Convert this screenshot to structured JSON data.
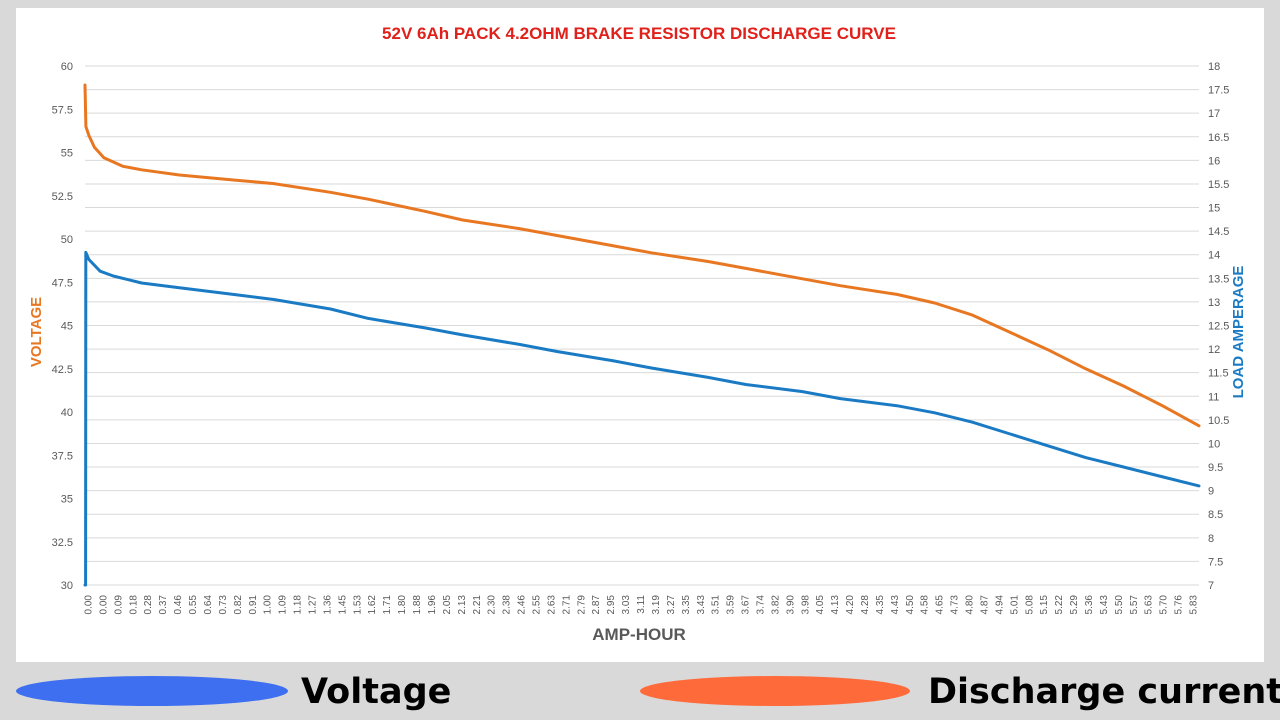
{
  "chart_data": {
    "type": "line",
    "title": "52V 6Ah PACK 4.2OHM BRAKE RESISTOR DISCHARGE CURVE",
    "xlabel": "AMP-HOUR",
    "ylabel_left": "VOLTAGE",
    "ylabel_right": "LOAD AMPERAGE",
    "xlim": [
      0,
      5.9
    ],
    "ylim_left": [
      30,
      60
    ],
    "ylim_right": [
      7,
      18
    ],
    "y_ticks_left": [
      "30",
      "32.5",
      "35",
      "37.5",
      "40",
      "42.5",
      "45",
      "47.5",
      "50",
      "52.5",
      "55",
      "57.5",
      "60"
    ],
    "y_ticks_right": [
      "7",
      "7.5",
      "8",
      "8.5",
      "9",
      "9.5",
      "10",
      "10.5",
      "11",
      "11.5",
      "12",
      "12.5",
      "13",
      "13.5",
      "14",
      "14.5",
      "15",
      "15.5",
      "16",
      "16.5",
      "17",
      "17.5",
      "18"
    ],
    "x_ticks": [
      "0.00",
      "0.00",
      "0.09",
      "0.18",
      "0.28",
      "0.37",
      "0.46",
      "0.55",
      "0.64",
      "0.73",
      "0.82",
      "0.91",
      "1.00",
      "1.09",
      "1.18",
      "1.27",
      "1.36",
      "1.45",
      "1.53",
      "1.62",
      "1.71",
      "1.80",
      "1.88",
      "1.96",
      "2.05",
      "2.13",
      "2.21",
      "2.30",
      "2.38",
      "2.46",
      "2.55",
      "2.63",
      "2.71",
      "2.79",
      "2.87",
      "2.95",
      "3.03",
      "3.11",
      "3.19",
      "3.27",
      "3.35",
      "3.43",
      "3.51",
      "3.59",
      "3.67",
      "3.74",
      "3.82",
      "3.90",
      "3.98",
      "4.05",
      "4.13",
      "4.20",
      "4.28",
      "4.35",
      "4.43",
      "4.50",
      "4.58",
      "4.65",
      "4.73",
      "4.80",
      "4.87",
      "4.94",
      "5.01",
      "5.08",
      "5.15",
      "5.22",
      "5.29",
      "5.36",
      "5.43",
      "5.50",
      "5.57",
      "5.63",
      "5.70",
      "5.76",
      "5.83"
    ],
    "grid": true,
    "series": [
      {
        "axis": "left",
        "color": "#e87722",
        "x": [
          0,
          0.005,
          0.02,
          0.05,
          0.1,
          0.2,
          0.3,
          0.5,
          0.8,
          1.0,
          1.3,
          1.5,
          1.8,
          2.0,
          2.3,
          2.5,
          2.8,
          3.0,
          3.3,
          3.5,
          3.8,
          4.0,
          4.3,
          4.5,
          4.7,
          4.9,
          5.1,
          5.3,
          5.5,
          5.7,
          5.9
        ],
        "values": [
          58.9,
          56.5,
          56.0,
          55.3,
          54.7,
          54.2,
          54.0,
          53.7,
          53.4,
          53.2,
          52.7,
          52.3,
          51.6,
          51.1,
          50.6,
          50.2,
          49.6,
          49.2,
          48.7,
          48.3,
          47.7,
          47.3,
          46.8,
          46.3,
          45.6,
          44.6,
          43.6,
          42.5,
          41.5,
          40.4,
          39.2
        ]
      },
      {
        "axis": "right",
        "color": "#1a7bc4",
        "x": [
          0,
          0.003,
          0.004,
          0.02,
          0.08,
          0.15,
          0.3,
          0.5,
          0.8,
          1.0,
          1.3,
          1.5,
          1.8,
          2.0,
          2.3,
          2.5,
          2.8,
          3.0,
          3.3,
          3.5,
          3.8,
          4.0,
          4.3,
          4.5,
          4.7,
          4.9,
          5.1,
          5.3,
          5.5,
          5.7,
          5.9
        ],
        "values": [
          7.0,
          7.0,
          14.05,
          13.9,
          13.65,
          13.55,
          13.4,
          13.3,
          13.15,
          13.05,
          12.85,
          12.65,
          12.45,
          12.3,
          12.1,
          11.95,
          11.75,
          11.6,
          11.4,
          11.25,
          11.1,
          10.95,
          10.8,
          10.65,
          10.45,
          10.2,
          9.95,
          9.7,
          9.5,
          9.3,
          9.1
        ]
      }
    ]
  },
  "legend": {
    "item1": {
      "label": "Voltage",
      "color": "#3d6ff0"
    },
    "item2": {
      "label": "Discharge current",
      "color": "#ff6a3a"
    }
  }
}
